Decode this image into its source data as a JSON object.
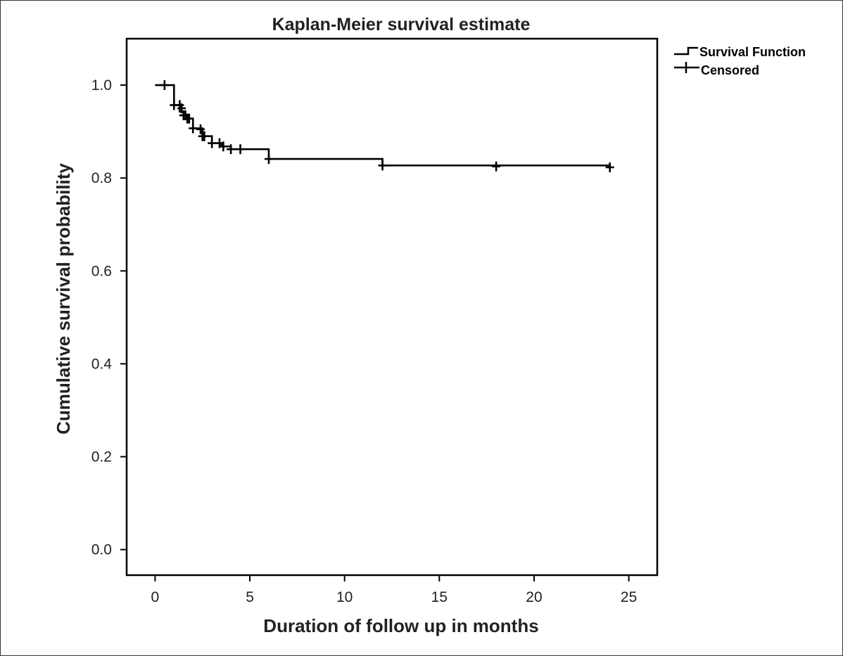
{
  "chart_data": {
    "type": "line",
    "title": "Kaplan-Meier survival estimate",
    "xlabel": "Duration of follow up in months",
    "ylabel": "Cumulative survival probability",
    "xlim": [
      -1.5,
      26.5
    ],
    "ylim": [
      -0.055,
      1.1
    ],
    "x_ticks": [
      0,
      5,
      10,
      15,
      20,
      25
    ],
    "x_tick_labels": [
      "0",
      "5",
      "10",
      "15",
      "20",
      "25"
    ],
    "y_ticks": [
      0.0,
      0.2,
      0.4,
      0.6,
      0.8,
      1.0
    ],
    "y_tick_labels": [
      "0.0",
      "0.2",
      "0.4",
      "0.6",
      "0.8",
      "1.0"
    ],
    "grid": false,
    "legend_position": "top-right, outside plot",
    "series": [
      {
        "name": "Survival Function",
        "style": "step",
        "color": "#000000",
        "x": [
          0,
          1.0,
          1.3,
          1.5,
          1.7,
          2.0,
          2.5,
          3.0,
          3.5,
          4.0,
          6.0,
          12.0,
          24.0
        ],
        "y": [
          1.0,
          0.957,
          0.943,
          0.935,
          0.928,
          0.907,
          0.89,
          0.875,
          0.868,
          0.862,
          0.841,
          0.827,
          0.823
        ]
      },
      {
        "name": "Censored",
        "style": "marker",
        "marker": "plus",
        "color": "#000000",
        "x": [
          0.5,
          1.0,
          1.3,
          1.4,
          1.5,
          1.6,
          1.7,
          1.8,
          2.0,
          2.4,
          2.5,
          2.6,
          3.0,
          3.4,
          3.6,
          4.0,
          4.5,
          6.0,
          12.0,
          18.0,
          24.0
        ],
        "y": [
          1.0,
          0.957,
          0.957,
          0.95,
          0.935,
          0.935,
          0.928,
          0.928,
          0.907,
          0.905,
          0.89,
          0.89,
          0.875,
          0.875,
          0.868,
          0.862,
          0.862,
          0.841,
          0.827,
          0.825,
          0.823
        ]
      }
    ]
  }
}
